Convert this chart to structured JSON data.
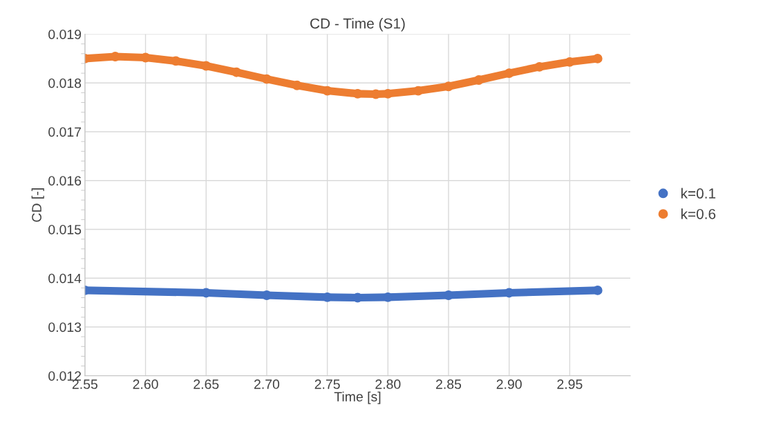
{
  "chart_data": {
    "type": "line",
    "title": "CD - Time (S1)",
    "xlabel": "Time [s]",
    "ylabel": "CD [-]",
    "xlim": [
      2.55,
      3.0
    ],
    "xticks": [
      2.55,
      {
        "value": 2.6,
        "label": "2.60"
      },
      2.65,
      {
        "value": 2.7,
        "label": "2.70"
      },
      2.75,
      {
        "value": 2.8,
        "label": "2.80"
      },
      2.85,
      {
        "value": 2.9,
        "label": "2.90"
      },
      2.95
    ],
    "ylim": [
      0.012,
      0.019
    ],
    "yticks": [
      0.012,
      0.013,
      0.014,
      0.015,
      0.016,
      0.017,
      0.018,
      0.019
    ],
    "grid": true,
    "legend": "right",
    "marker": "circle",
    "series": [
      {
        "name": "k=0.1",
        "color": "#4472c4",
        "x": [
          2.55,
          2.65,
          2.7,
          2.75,
          2.775,
          2.8,
          2.85,
          2.9,
          2.973
        ],
        "values": [
          0.01375,
          0.0137,
          0.01365,
          0.01361,
          0.0136,
          0.01361,
          0.01365,
          0.0137,
          0.01375
        ]
      },
      {
        "name": "k=0.6",
        "color": "#ed7d31",
        "x": [
          2.55,
          2.575,
          2.6,
          2.625,
          2.65,
          2.675,
          2.7,
          2.725,
          2.75,
          2.775,
          2.79,
          2.8,
          2.825,
          2.85,
          2.875,
          2.9,
          2.925,
          2.95,
          2.973
        ],
        "values": [
          0.0185,
          0.01854,
          0.01852,
          0.01845,
          0.01835,
          0.01822,
          0.01808,
          0.01795,
          0.01784,
          0.01778,
          0.01777,
          0.01778,
          0.01784,
          0.01793,
          0.01806,
          0.0182,
          0.01833,
          0.01843,
          0.0185
        ]
      }
    ]
  }
}
